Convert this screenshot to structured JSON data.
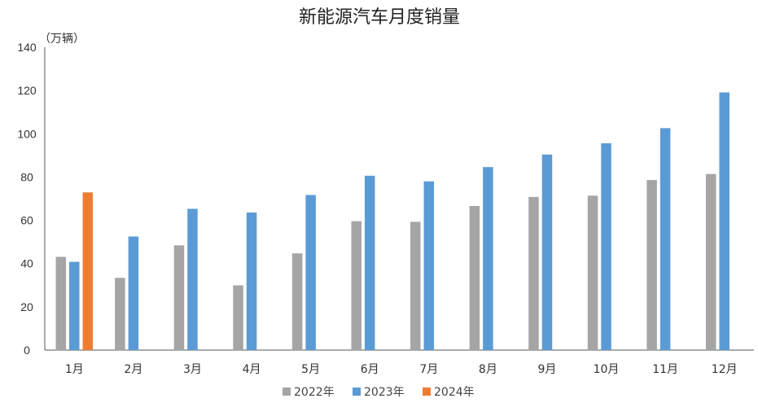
{
  "chart_data": {
    "type": "bar",
    "title": "新能源汽车月度销量",
    "unit_label": "（万辆）",
    "categories": [
      "1月",
      "2月",
      "3月",
      "4月",
      "5月",
      "6月",
      "7月",
      "8月",
      "9月",
      "10月",
      "11月",
      "12月"
    ],
    "series": [
      {
        "name": "2022年",
        "color": "#a5a5a5",
        "values": [
          43.1,
          33.4,
          48.4,
          29.9,
          44.7,
          59.6,
          59.3,
          66.6,
          70.8,
          71.4,
          78.6,
          81.4
        ]
      },
      {
        "name": "2023年",
        "color": "#5b9bd5",
        "values": [
          40.8,
          52.5,
          65.3,
          63.6,
          71.7,
          80.6,
          78.0,
          84.6,
          90.4,
          95.6,
          102.6,
          119.1
        ]
      },
      {
        "name": "2024年",
        "color": "#ed7d31",
        "values": [
          72.9,
          null,
          null,
          null,
          null,
          null,
          null,
          null,
          null,
          null,
          null,
          null
        ]
      }
    ],
    "ylim": [
      0,
      140
    ],
    "yticks": [
      0,
      20,
      40,
      60,
      80,
      100,
      120,
      140
    ],
    "grid": false,
    "legend_position": "bottom"
  }
}
